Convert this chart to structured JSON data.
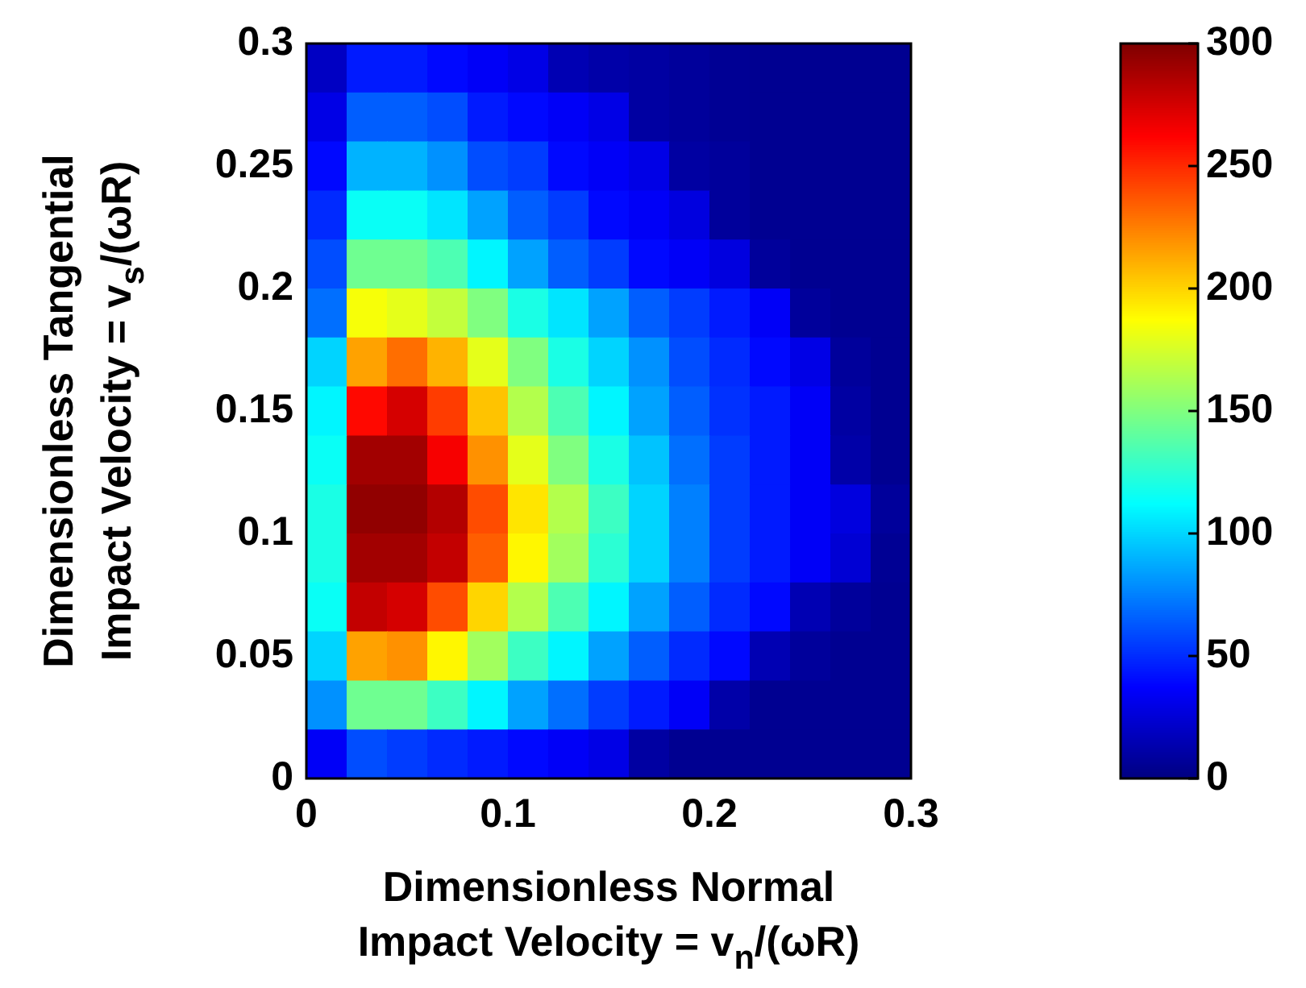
{
  "chart_data": {
    "type": "heatmap",
    "xlabel": "Dimensionless Normal\nImpact Velocity = v$_{n}$/(ωR)",
    "ylabel": "Dimensionless Tangential\nImpact Velocity = v$_{s}$/(ωR)",
    "x": [
      0.01,
      0.03,
      0.05,
      0.07,
      0.09,
      0.11,
      0.13,
      0.15,
      0.17,
      0.19,
      0.21,
      0.23,
      0.25,
      0.27,
      0.29
    ],
    "y": [
      0.29,
      0.27,
      0.25,
      0.23,
      0.21,
      0.19,
      0.17,
      0.15,
      0.13,
      0.11,
      0.09,
      0.07,
      0.05,
      0.03,
      0.01
    ],
    "cells": [
      [
        20,
        45,
        45,
        40,
        35,
        30,
        15,
        12,
        10,
        8,
        6,
        5,
        5,
        5,
        5
      ],
      [
        30,
        65,
        65,
        60,
        45,
        40,
        35,
        30,
        10,
        8,
        6,
        5,
        5,
        5,
        5
      ],
      [
        40,
        90,
        90,
        80,
        60,
        55,
        40,
        35,
        30,
        10,
        8,
        5,
        5,
        5,
        5
      ],
      [
        50,
        115,
        115,
        105,
        85,
        65,
        55,
        40,
        35,
        28,
        8,
        5,
        5,
        5,
        5
      ],
      [
        60,
        145,
        145,
        135,
        110,
        85,
        65,
        55,
        40,
        35,
        28,
        8,
        5,
        5,
        5
      ],
      [
        70,
        185,
        180,
        170,
        150,
        120,
        105,
        85,
        65,
        55,
        45,
        35,
        8,
        5,
        5
      ],
      [
        100,
        215,
        230,
        210,
        180,
        150,
        120,
        100,
        80,
        60,
        50,
        40,
        30,
        8,
        5
      ],
      [
        110,
        260,
        275,
        245,
        205,
        165,
        135,
        110,
        85,
        65,
        52,
        45,
        35,
        10,
        5
      ],
      [
        115,
        290,
        290,
        265,
        220,
        180,
        150,
        120,
        95,
        70,
        55,
        45,
        35,
        12,
        5
      ],
      [
        120,
        295,
        295,
        285,
        240,
        195,
        165,
        130,
        100,
        75,
        55,
        45,
        35,
        28,
        8
      ],
      [
        120,
        290,
        290,
        280,
        235,
        190,
        160,
        125,
        100,
        75,
        55,
        45,
        35,
        25,
        6
      ],
      [
        115,
        280,
        275,
        240,
        200,
        165,
        135,
        110,
        85,
        65,
        50,
        40,
        15,
        8,
        5
      ],
      [
        100,
        215,
        220,
        190,
        160,
        130,
        110,
        85,
        65,
        50,
        40,
        15,
        8,
        5,
        5
      ],
      [
        80,
        145,
        145,
        130,
        110,
        85,
        70,
        55,
        45,
        35,
        12,
        5,
        5,
        5,
        5
      ],
      [
        35,
        60,
        55,
        50,
        45,
        40,
        35,
        30,
        10,
        5,
        5,
        5,
        5,
        5,
        5
      ]
    ],
    "xlim": [
      0,
      0.3
    ],
    "xticks": [
      0,
      0.1,
      0.2,
      0.3
    ],
    "ylim": [
      0,
      0.3
    ],
    "yticks": [
      0,
      0.05,
      0.1,
      0.15,
      0.2,
      0.25,
      0.3
    ],
    "clim": [
      0,
      300
    ],
    "cticks": [
      0,
      50,
      100,
      150,
      200,
      250,
      300
    ]
  }
}
